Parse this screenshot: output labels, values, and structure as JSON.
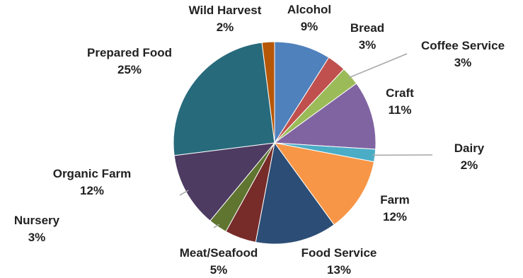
{
  "chart_data": {
    "type": "pie",
    "title": "",
    "start_angle_deg": 0,
    "direction": "clockwise",
    "slices": [
      {
        "label": "Alcohol",
        "percent_label": "9%",
        "value": 9,
        "color": "#4F81BD"
      },
      {
        "label": "Bread",
        "percent_label": "3%",
        "value": 3,
        "color": "#C0504D"
      },
      {
        "label": "Coffee Service",
        "percent_label": "3%",
        "value": 3,
        "color": "#9BBB59"
      },
      {
        "label": "Craft",
        "percent_label": "11%",
        "value": 11,
        "color": "#8064A2"
      },
      {
        "label": "Dairy",
        "percent_label": "2%",
        "value": 2,
        "color": "#4BACC6"
      },
      {
        "label": "Farm",
        "percent_label": "12%",
        "value": 12,
        "color": "#F79646"
      },
      {
        "label": "Food Service",
        "percent_label": "13%",
        "value": 13,
        "color": "#2C4D75"
      },
      {
        "label": "Meat/Seafood",
        "percent_label": "5%",
        "value": 5,
        "color": "#772C2A"
      },
      {
        "label": "Nursery",
        "percent_label": "3%",
        "value": 3,
        "color": "#5F7530"
      },
      {
        "label": "Organic Farm",
        "percent_label": "12%",
        "value": 12,
        "color": "#4D3B62"
      },
      {
        "label": "Prepared Food",
        "percent_label": "25%",
        "value": 25,
        "color": "#276A7C"
      },
      {
        "label": "Wild Harvest",
        "percent_label": "2%",
        "value": 2,
        "color": "#B65708"
      }
    ]
  }
}
